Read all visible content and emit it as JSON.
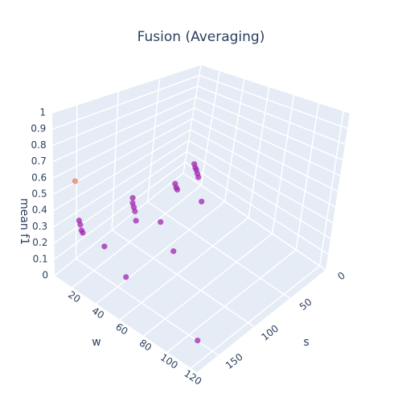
{
  "chart_data": {
    "type": "scatter3d",
    "title": "Fusion (Averaging)",
    "xlabel": "s",
    "ylabel": "w",
    "zlabel": "mean f1",
    "x": [
      180,
      180,
      180,
      180,
      180,
      180,
      180,
      180,
      153,
      153,
      153,
      153,
      153,
      135,
      108,
      108,
      108,
      81,
      81,
      81,
      81,
      81,
      81,
      126
    ],
    "y": [
      23,
      26,
      27,
      28,
      29,
      47,
      65,
      125,
      53,
      53,
      54,
      55,
      56,
      65,
      59,
      60,
      61,
      57,
      58,
      59,
      60,
      61,
      65,
      71
    ],
    "z": [
      0.64,
      0.42,
      0.4,
      0.37,
      0.36,
      0.35,
      0.25,
      0.15,
      0.58,
      0.55,
      0.53,
      0.51,
      0.46,
      0.44,
      0.58,
      0.56,
      0.55,
      0.63,
      0.61,
      0.6,
      0.58,
      0.56,
      0.42,
      0.27
    ],
    "colors": [
      "#ef7f5f",
      "#a324b0",
      "#a324b0",
      "#a324b0",
      "#a324b0",
      "#a324b0",
      "#a324b0",
      "#a324b0",
      "#a324b0",
      "#a324b0",
      "#a324b0",
      "#a324b0",
      "#a324b0",
      "#a324b0",
      "#a324b0",
      "#a324b0",
      "#a324b0",
      "#a324b0",
      "#a324b0",
      "#a324b0",
      "#a324b0",
      "#a324b0",
      "#a324b0",
      "#a324b0"
    ],
    "opacity": 0.75,
    "xlim": [
      0,
      180
    ],
    "ylim": [
      5,
      125
    ],
    "zlim": [
      0,
      1
    ],
    "xticks": [
      0,
      50,
      100,
      150
    ],
    "yticks": [
      20,
      40,
      60,
      80,
      100,
      120
    ],
    "zticks": [
      0,
      0.1,
      0.2,
      0.3,
      0.4,
      0.5,
      0.6,
      0.7,
      0.8,
      0.9,
      1
    ],
    "grid": true
  }
}
